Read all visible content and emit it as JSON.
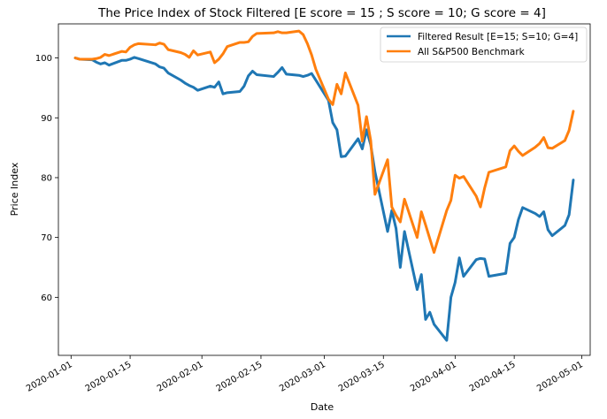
{
  "chart_data": {
    "type": "line",
    "title": "The Price Index of Stock Filtered [E score = 15 ; S score = 10; G score = 4]",
    "xlabel": "Date",
    "ylabel": "Price Index",
    "xlim": [
      "2019-12-29",
      "2020-05-03"
    ],
    "ylim": [
      50.3,
      105.7
    ],
    "x_ticks": [
      "2020-01-01",
      "2020-01-15",
      "2020-02-01",
      "2020-02-15",
      "2020-03-01",
      "2020-03-15",
      "2020-04-01",
      "2020-04-15",
      "2020-05-01"
    ],
    "y_ticks": [
      60,
      70,
      80,
      90,
      100
    ],
    "grid": false,
    "legend_position": "top-right",
    "series": [
      {
        "name": "Filtered Result [E=15; S=10; G=4]",
        "color": "#1f77b4",
        "x": [
          "2020-01-02",
          "2020-01-03",
          "2020-01-06",
          "2020-01-07",
          "2020-01-08",
          "2020-01-09",
          "2020-01-10",
          "2020-01-13",
          "2020-01-14",
          "2020-01-15",
          "2020-01-16",
          "2020-01-17",
          "2020-01-21",
          "2020-01-22",
          "2020-01-23",
          "2020-01-24",
          "2020-01-27",
          "2020-01-28",
          "2020-01-29",
          "2020-01-30",
          "2020-01-31",
          "2020-02-03",
          "2020-02-04",
          "2020-02-05",
          "2020-02-06",
          "2020-02-07",
          "2020-02-10",
          "2020-02-11",
          "2020-02-12",
          "2020-02-13",
          "2020-02-14",
          "2020-02-18",
          "2020-02-19",
          "2020-02-20",
          "2020-02-21",
          "2020-02-24",
          "2020-02-25",
          "2020-02-26",
          "2020-02-27",
          "2020-02-28",
          "2020-03-02",
          "2020-03-03",
          "2020-03-04",
          "2020-03-05",
          "2020-03-06",
          "2020-03-09",
          "2020-03-10",
          "2020-03-11",
          "2020-03-12",
          "2020-03-13",
          "2020-03-16",
          "2020-03-17",
          "2020-03-18",
          "2020-03-19",
          "2020-03-20",
          "2020-03-23",
          "2020-03-24",
          "2020-03-25",
          "2020-03-26",
          "2020-03-27",
          "2020-03-30",
          "2020-03-31",
          "2020-04-01",
          "2020-04-02",
          "2020-04-03",
          "2020-04-06",
          "2020-04-07",
          "2020-04-08",
          "2020-04-09",
          "2020-04-13",
          "2020-04-14",
          "2020-04-15",
          "2020-04-16",
          "2020-04-17",
          "2020-04-20",
          "2020-04-21",
          "2020-04-22",
          "2020-04-23",
          "2020-04-24",
          "2020-04-27",
          "2020-04-28",
          "2020-04-29"
        ],
        "values": [
          100.0,
          99.8,
          99.7,
          99.3,
          99.0,
          99.2,
          98.8,
          99.6,
          99.6,
          99.8,
          100.1,
          99.9,
          99.0,
          98.5,
          98.3,
          97.5,
          96.3,
          95.8,
          95.4,
          95.1,
          94.6,
          95.3,
          95.1,
          96.0,
          94.0,
          94.2,
          94.4,
          95.3,
          97.0,
          97.8,
          97.2,
          96.9,
          97.6,
          98.4,
          97.3,
          97.1,
          96.9,
          97.1,
          97.4,
          96.3,
          92.9,
          89.2,
          88.0,
          83.5,
          83.6,
          86.5,
          84.8,
          88.0,
          85.5,
          81.0,
          71.0,
          74.5,
          71.5,
          65.0,
          71.0,
          61.3,
          63.8,
          56.3,
          57.5,
          55.5,
          52.8,
          60.0,
          62.5,
          66.6,
          63.5,
          66.3,
          66.5,
          66.4,
          63.5,
          64.0,
          69.0,
          70.0,
          73.0,
          75.0,
          74.0,
          73.5,
          74.3,
          71.3,
          70.3,
          72.0,
          73.8,
          79.6
        ]
      },
      {
        "name": "All S&P500 Benchmark",
        "color": "#ff7f0e",
        "x": [
          "2020-01-02",
          "2020-01-03",
          "2020-01-06",
          "2020-01-07",
          "2020-01-08",
          "2020-01-09",
          "2020-01-10",
          "2020-01-13",
          "2020-01-14",
          "2020-01-15",
          "2020-01-16",
          "2020-01-17",
          "2020-01-21",
          "2020-01-22",
          "2020-01-23",
          "2020-01-24",
          "2020-01-27",
          "2020-01-28",
          "2020-01-29",
          "2020-01-30",
          "2020-01-31",
          "2020-02-03",
          "2020-02-04",
          "2020-02-05",
          "2020-02-06",
          "2020-02-07",
          "2020-02-10",
          "2020-02-11",
          "2020-02-12",
          "2020-02-13",
          "2020-02-14",
          "2020-02-18",
          "2020-02-19",
          "2020-02-20",
          "2020-02-21",
          "2020-02-24",
          "2020-02-25",
          "2020-02-26",
          "2020-02-27",
          "2020-02-28",
          "2020-03-02",
          "2020-03-03",
          "2020-03-04",
          "2020-03-05",
          "2020-03-06",
          "2020-03-09",
          "2020-03-10",
          "2020-03-11",
          "2020-03-12",
          "2020-03-13",
          "2020-03-16",
          "2020-03-17",
          "2020-03-18",
          "2020-03-19",
          "2020-03-20",
          "2020-03-23",
          "2020-03-24",
          "2020-03-25",
          "2020-03-26",
          "2020-03-27",
          "2020-03-30",
          "2020-03-31",
          "2020-04-01",
          "2020-04-02",
          "2020-04-03",
          "2020-04-06",
          "2020-04-07",
          "2020-04-08",
          "2020-04-09",
          "2020-04-13",
          "2020-04-14",
          "2020-04-15",
          "2020-04-16",
          "2020-04-17",
          "2020-04-20",
          "2020-04-21",
          "2020-04-22",
          "2020-04-23",
          "2020-04-24",
          "2020-04-27",
          "2020-04-28",
          "2020-04-29"
        ],
        "values": [
          100.0,
          99.8,
          99.8,
          99.9,
          100.1,
          100.6,
          100.4,
          101.1,
          101.0,
          101.8,
          102.2,
          102.4,
          102.2,
          102.5,
          102.3,
          101.4,
          100.9,
          100.6,
          100.1,
          101.2,
          100.5,
          101.0,
          99.2,
          99.8,
          100.7,
          101.9,
          102.6,
          102.6,
          102.7,
          103.6,
          104.1,
          104.2,
          104.4,
          104.2,
          104.2,
          104.5,
          103.9,
          102.4,
          100.5,
          98.1,
          93.1,
          92.2,
          95.6,
          94.0,
          97.5,
          92.1,
          86.1,
          90.2,
          86.2,
          77.2,
          83.0,
          75.1,
          73.7,
          72.6,
          76.4,
          70.0,
          74.3,
          72.1,
          69.8,
          67.5,
          74.5,
          76.2,
          80.4,
          79.9,
          80.2,
          76.9,
          75.1,
          78.3,
          80.9,
          81.8,
          84.5,
          85.3,
          84.4,
          83.7,
          85.1,
          85.7,
          86.7,
          85.0,
          84.9,
          86.2,
          87.9,
          91.1
        ]
      }
    ]
  }
}
